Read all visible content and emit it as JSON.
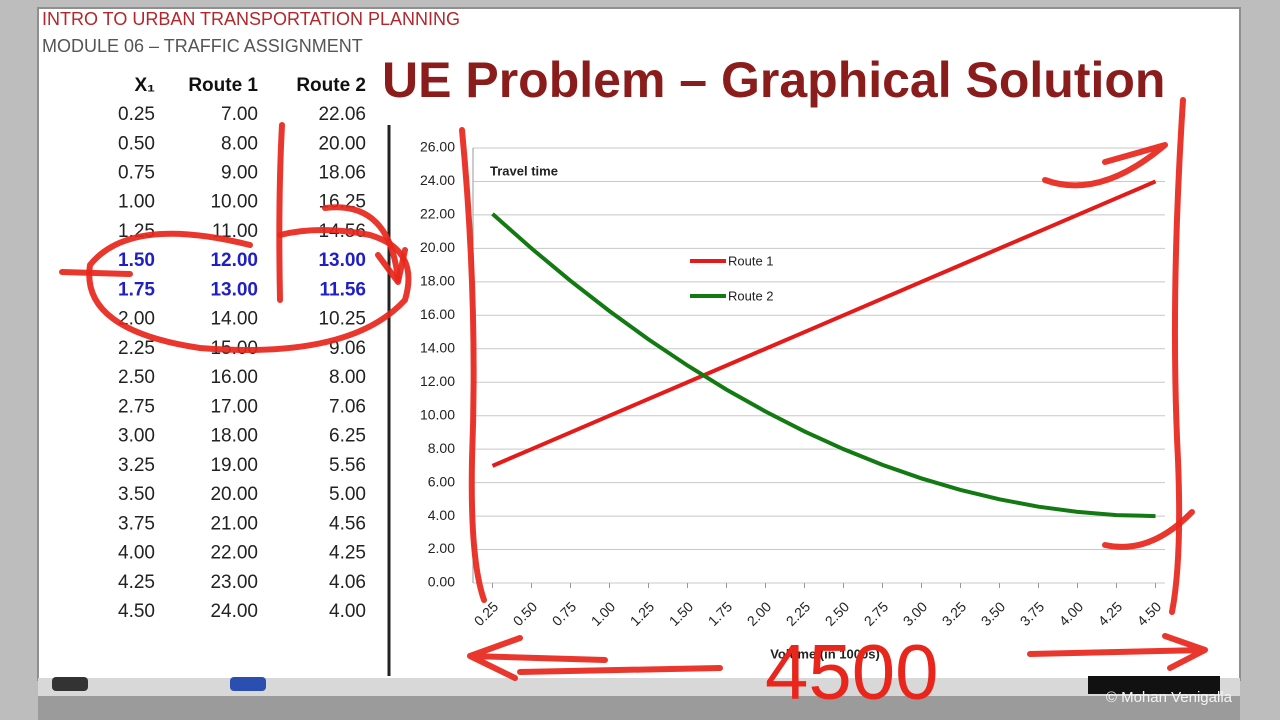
{
  "header": {
    "course": "INTRO TO URBAN TRANSPORTATION PLANNING",
    "module": "MODULE 06 – TRAFFIC ASSIGNMENT",
    "title": "UE Problem – Graphical Solution"
  },
  "table": {
    "columns": [
      "X₁",
      "Route 1",
      "Route 2"
    ],
    "rows": [
      [
        "0.25",
        "7.00",
        "22.06"
      ],
      [
        "0.50",
        "8.00",
        "20.00"
      ],
      [
        "0.75",
        "9.00",
        "18.06"
      ],
      [
        "1.00",
        "10.00",
        "16.25"
      ],
      [
        "1.25",
        "11.00",
        "14.56"
      ],
      [
        "1.50",
        "12.00",
        "13.00"
      ],
      [
        "1.75",
        "13.00",
        "11.56"
      ],
      [
        "2.00",
        "14.00",
        "10.25"
      ],
      [
        "2.25",
        "15.00",
        "9.06"
      ],
      [
        "2.50",
        "16.00",
        "8.00"
      ],
      [
        "2.75",
        "17.00",
        "7.06"
      ],
      [
        "3.00",
        "18.00",
        "6.25"
      ],
      [
        "3.25",
        "19.00",
        "5.56"
      ],
      [
        "3.50",
        "20.00",
        "5.00"
      ],
      [
        "3.75",
        "21.00",
        "4.56"
      ],
      [
        "4.00",
        "22.00",
        "4.25"
      ],
      [
        "4.25",
        "23.00",
        "4.06"
      ],
      [
        "4.50",
        "24.00",
        "4.00"
      ]
    ],
    "highlighted_rows": [
      5,
      6
    ],
    "highlight_color": "#1f1fc8"
  },
  "chart_data": {
    "type": "line",
    "ylabel": "Travel time",
    "xlabel": "Volume (in 1000s)",
    "categories": [
      "0.25",
      "0.50",
      "0.75",
      "1.00",
      "1.25",
      "1.50",
      "1.75",
      "2.00",
      "2.25",
      "2.50",
      "2.75",
      "3.00",
      "3.25",
      "3.50",
      "3.75",
      "4.00",
      "4.25",
      "4.50"
    ],
    "series": [
      {
        "name": "Route 1",
        "color": "#e41b1b",
        "values": [
          7,
          8,
          9,
          10,
          11,
          12,
          13,
          14,
          15,
          16,
          17,
          18,
          19,
          20,
          21,
          22,
          23,
          24
        ]
      },
      {
        "name": "Route 2",
        "color": "#137a13",
        "values": [
          22.06,
          20,
          18.06,
          16.25,
          14.56,
          13,
          11.56,
          10.25,
          9.06,
          8,
          7.06,
          6.25,
          5.56,
          5,
          4.56,
          4.25,
          4.06,
          4
        ]
      }
    ],
    "ylim": [
      0,
      26
    ],
    "yticks": [
      {
        "value": 0,
        "label": "0.00"
      },
      {
        "value": 2,
        "label": "2.00"
      },
      {
        "value": 4,
        "label": "4.00"
      },
      {
        "value": 6,
        "label": "6.00"
      },
      {
        "value": 8,
        "label": "8.00"
      },
      {
        "value": 10,
        "label": "10.00"
      },
      {
        "value": 12,
        "label": "12.00"
      },
      {
        "value": 14,
        "label": "14.00"
      },
      {
        "value": 16,
        "label": "16.00"
      },
      {
        "value": 18,
        "label": "18.00"
      },
      {
        "value": 20,
        "label": "20.00"
      },
      {
        "value": 22,
        "label": "22.00"
      },
      {
        "value": 24,
        "label": "24.00"
      },
      {
        "value": 26,
        "label": "26.00"
      }
    ],
    "grid": true
  },
  "annotations": [
    "4500"
  ],
  "footer": {
    "copyright": "© Mohan Venigalla"
  }
}
